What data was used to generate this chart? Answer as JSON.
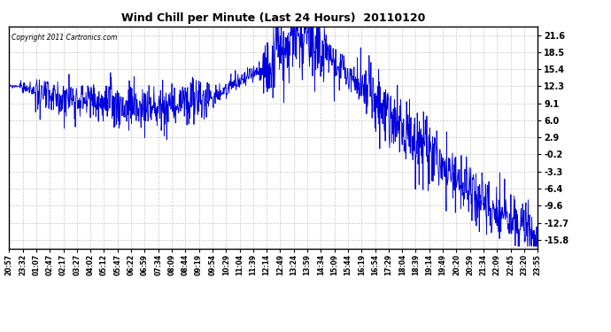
{
  "title": "Wind Chill per Minute (Last 24 Hours)  20110120",
  "copyright": "Copyright 2011 Cartronics.com",
  "line_color": "#0000DD",
  "bg_color": "#ffffff",
  "plot_bg_color": "#ffffff",
  "grid_color": "#bbbbbb",
  "yticks": [
    21.6,
    18.5,
    15.4,
    12.3,
    9.1,
    6.0,
    2.9,
    -0.2,
    -3.3,
    -6.4,
    -9.6,
    -12.7,
    -15.8
  ],
  "ylim": [
    -17.5,
    23.2
  ],
  "xtick_labels": [
    "20:57",
    "23:32",
    "01:07",
    "02:47",
    "02:17",
    "03:27",
    "04:02",
    "05:12",
    "05:47",
    "06:22",
    "06:59",
    "07:34",
    "08:09",
    "08:44",
    "09:19",
    "09:54",
    "10:29",
    "11:04",
    "11:39",
    "12:14",
    "12:49",
    "13:24",
    "13:59",
    "14:34",
    "15:09",
    "15:44",
    "16:19",
    "16:54",
    "17:29",
    "18:04",
    "18:39",
    "19:14",
    "19:49",
    "20:20",
    "20:59",
    "21:34",
    "22:09",
    "22:45",
    "23:20",
    "23:55"
  ]
}
